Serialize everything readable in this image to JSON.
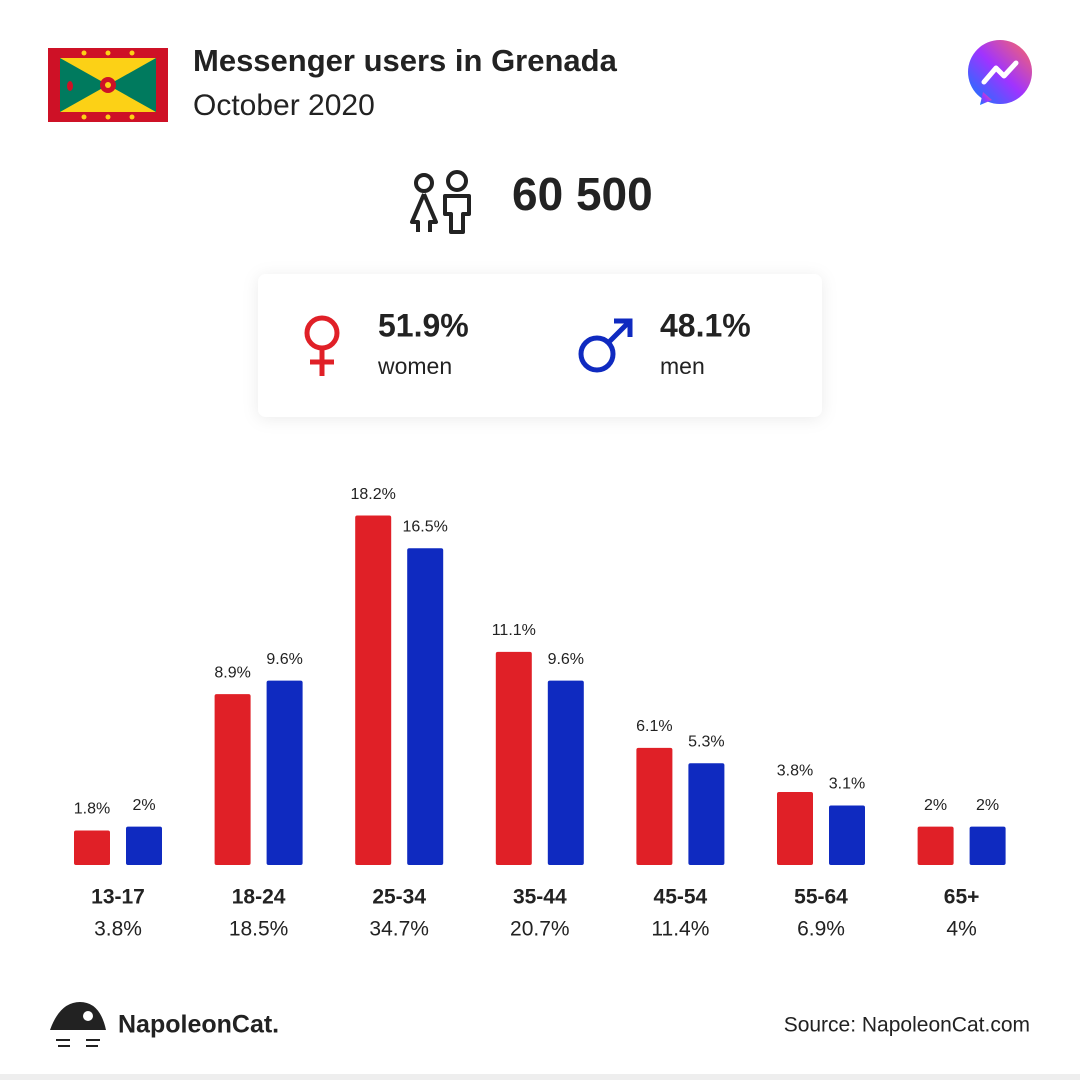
{
  "header": {
    "title": "Messenger users in Grenada",
    "subtitle": "October 2020"
  },
  "total_users": "60 500",
  "gender": {
    "women_share": "51.9%",
    "women_label": "women",
    "men_share": "48.1%",
    "men_label": "men"
  },
  "chart_data": {
    "type": "bar",
    "categories": [
      "13-17",
      "18-24",
      "25-34",
      "35-44",
      "45-54",
      "55-64",
      "65+"
    ],
    "category_totals": [
      "3.8%",
      "18.5%",
      "34.7%",
      "20.7%",
      "11.4%",
      "6.9%",
      "4%"
    ],
    "series": [
      {
        "name": "women",
        "color": "#e02027",
        "values": [
          1.8,
          8.9,
          18.2,
          11.1,
          6.1,
          3.8,
          2
        ],
        "value_labels": [
          "1.8%",
          "8.9%",
          "18.2%",
          "11.1%",
          "6.1%",
          "3.8%",
          "2%"
        ]
      },
      {
        "name": "men",
        "color": "#0f2ac0",
        "values": [
          2,
          9.6,
          16.5,
          9.6,
          5.3,
          3.1,
          2
        ],
        "value_labels": [
          "2%",
          "9.6%",
          "16.5%",
          "9.6%",
          "5.3%",
          "3.1%",
          "2%"
        ]
      }
    ]
  },
  "footer": {
    "brand": "NapoleonCat.",
    "source": "Source: NapoleonCat.com"
  }
}
